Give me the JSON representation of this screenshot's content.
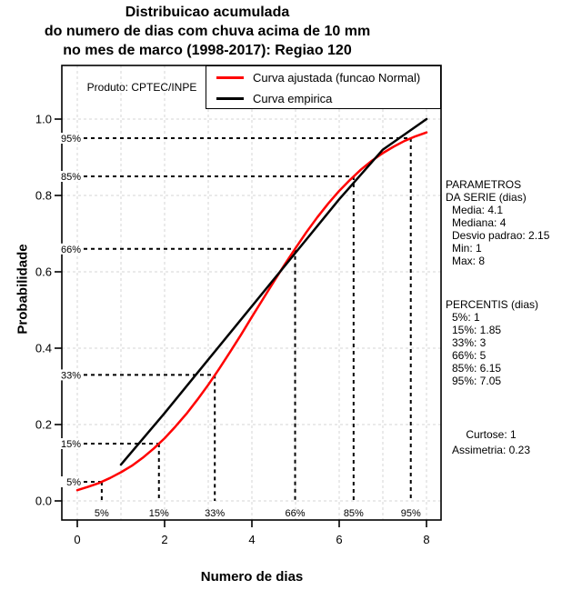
{
  "title": {
    "line1": "Distribuicao acumulada",
    "line2": "do numero de dias com chuva acima de 10 mm",
    "line3": "no mes de marco (1998-2017): Regiao 120"
  },
  "axes": {
    "x_label": "Numero de dias",
    "y_label": "Probabilidade",
    "x_ticks": [
      "0",
      "2",
      "4",
      "6",
      "8"
    ],
    "y_ticks": [
      "0.0",
      "0.2",
      "0.4",
      "0.6",
      "0.8",
      "1.0"
    ]
  },
  "legend": {
    "items": [
      {
        "label": "Curva ajustada (funcao Normal)",
        "color": "#FF0000"
      },
      {
        "label": "Curva empirica",
        "color": "#000000"
      }
    ]
  },
  "product_label": "Produto: CPTEC/INPE",
  "side_panel": {
    "parametros": {
      "title_line1": "PARAMETROS",
      "title_line2": "DA SERIE (dias)",
      "items": [
        "Media: 4.1",
        "Mediana: 4",
        "Desvio padrao: 2.15",
        "Min: 1",
        "Max: 8"
      ]
    },
    "percentis": {
      "title": "PERCENTIS (dias)",
      "items": [
        "5%: 1",
        "15%: 1.85",
        "33%: 3",
        "66%: 5",
        "85%: 6.15",
        "95%: 7.05"
      ]
    },
    "moments": {
      "line1": "Curtose: 1",
      "line2": "Assimetria: 0.23"
    }
  },
  "chart_data": {
    "type": "line",
    "title": "Distribuicao acumulada do numero de dias com chuva acima de 10 mm no mes de marco (1998-2017): Regiao 120",
    "xlabel": "Numero de dias",
    "ylabel": "Probabilidade",
    "xlim": [
      0,
      8
    ],
    "ylim": [
      0,
      1
    ],
    "grid": true,
    "legend_position": "top",
    "grid_x": [
      0,
      1,
      2,
      3,
      4,
      5,
      6,
      7,
      8
    ],
    "grid_y": [
      0,
      0.2,
      0.4,
      0.6,
      0.8,
      1
    ],
    "x_tick_values": [
      0,
      2,
      4,
      6,
      8
    ],
    "y_tick_values": [
      0,
      0.2,
      0.4,
      0.6,
      0.8,
      1
    ],
    "series": [
      {
        "name": "Curva ajustada (funcao Normal)",
        "color": "#FF0000",
        "x": [
          0,
          0.25,
          0.5,
          0.75,
          1,
          1.25,
          1.5,
          1.75,
          2,
          2.25,
          2.5,
          2.75,
          3,
          3.25,
          3.5,
          3.75,
          4,
          4.25,
          4.5,
          4.75,
          5,
          5.25,
          5.5,
          5.75,
          6,
          6.25,
          6.5,
          6.75,
          7,
          7.25,
          7.5,
          7.75,
          8
        ],
        "y": [
          0.028,
          0.037,
          0.047,
          0.06,
          0.075,
          0.092,
          0.113,
          0.137,
          0.164,
          0.195,
          0.228,
          0.265,
          0.304,
          0.346,
          0.39,
          0.435,
          0.482,
          0.528,
          0.574,
          0.619,
          0.662,
          0.704,
          0.743,
          0.779,
          0.812,
          0.841,
          0.868,
          0.891,
          0.911,
          0.928,
          0.943,
          0.955,
          0.965
        ]
      },
      {
        "name": "Curva empirica",
        "color": "#000000",
        "x": [
          1,
          2,
          3,
          4,
          5,
          6,
          7,
          8
        ],
        "y": [
          0.095,
          0.23,
          0.37,
          0.51,
          0.65,
          0.79,
          0.92,
          1.0
        ]
      }
    ],
    "percentile_markers": [
      {
        "label": "5%",
        "probability": 0.05,
        "x_fitted": 0.56
      },
      {
        "label": "15%",
        "probability": 0.15,
        "x_fitted": 1.87
      },
      {
        "label": "33%",
        "probability": 0.33,
        "x_fitted": 3.15
      },
      {
        "label": "66%",
        "probability": 0.66,
        "x_fitted": 4.99
      },
      {
        "label": "85%",
        "probability": 0.85,
        "x_fitted": 6.33
      },
      {
        "label": "95%",
        "probability": 0.95,
        "x_fitted": 7.64
      }
    ],
    "stats": {
      "media": 4.1,
      "mediana": 4,
      "desvio_padrao": 2.15,
      "min": 1,
      "max": 8,
      "curtose": 1,
      "assimetria": 0.23
    },
    "percentis": {
      "p5": 1,
      "p15": 1.85,
      "p33": 3,
      "p66": 5,
      "p85": 6.15,
      "p95": 7.05
    }
  }
}
